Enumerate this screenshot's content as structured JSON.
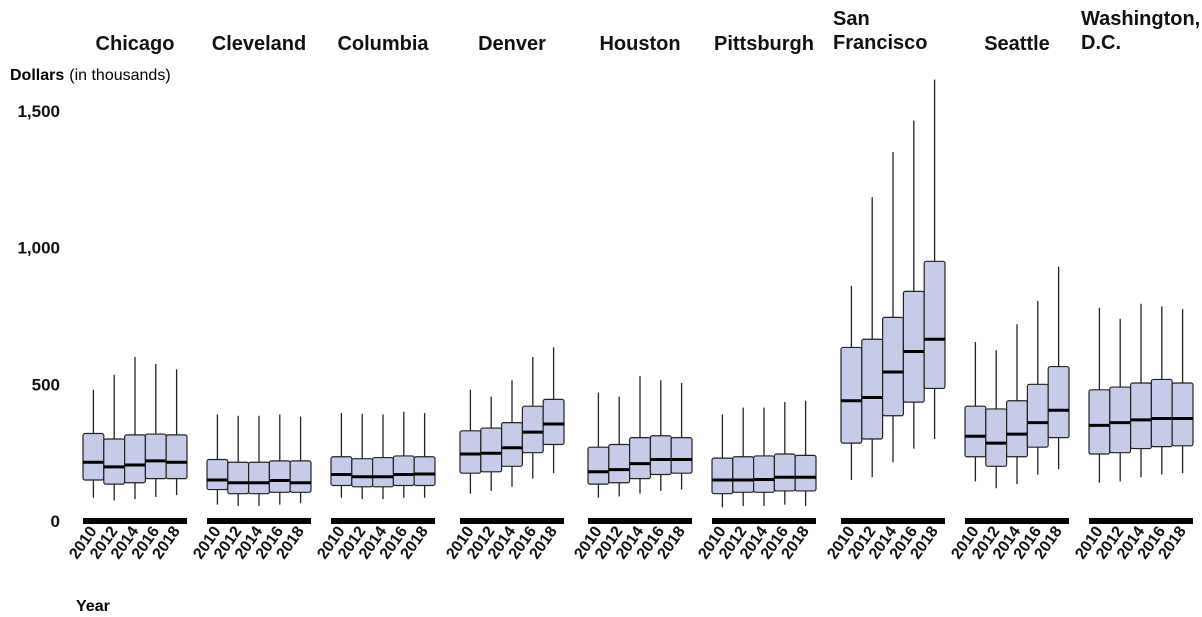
{
  "chart_data": {
    "type": "boxplot",
    "ylabel_bold": "Dollars",
    "ylabel_unit": "(in thousands)",
    "xlabel": "Year",
    "ylim": [
      0,
      1500
    ],
    "yticks": [
      {
        "value": 0,
        "label": "0"
      },
      {
        "value": 500,
        "label": "500"
      },
      {
        "value": 1000,
        "label": "1,000"
      },
      {
        "value": 1500,
        "label": "1,500"
      }
    ],
    "years": [
      "2010",
      "2012",
      "2014",
      "2016",
      "2018"
    ],
    "box_color": "#c5cbe8",
    "panels": [
      {
        "city": [
          "Chicago"
        ],
        "boxes": [
          {
            "year": "2010",
            "min": 85,
            "q1": 150,
            "median": 215,
            "q3": 320,
            "max": 480
          },
          {
            "year": "2012",
            "min": 75,
            "q1": 135,
            "median": 198,
            "q3": 300,
            "max": 535
          },
          {
            "year": "2014",
            "min": 80,
            "q1": 140,
            "median": 205,
            "q3": 315,
            "max": 600
          },
          {
            "year": "2016",
            "min": 88,
            "q1": 155,
            "median": 220,
            "q3": 318,
            "max": 575
          },
          {
            "year": "2018",
            "min": 95,
            "q1": 155,
            "median": 215,
            "q3": 315,
            "max": 555
          }
        ]
      },
      {
        "city": [
          "Cleveland"
        ],
        "boxes": [
          {
            "year": "2010",
            "min": 60,
            "q1": 115,
            "median": 150,
            "q3": 225,
            "max": 390
          },
          {
            "year": "2012",
            "min": 55,
            "q1": 100,
            "median": 140,
            "q3": 215,
            "max": 385
          },
          {
            "year": "2014",
            "min": 55,
            "q1": 100,
            "median": 140,
            "q3": 215,
            "max": 385
          },
          {
            "year": "2016",
            "min": 60,
            "q1": 105,
            "median": 148,
            "q3": 220,
            "max": 390
          },
          {
            "year": "2018",
            "min": 65,
            "q1": 105,
            "median": 140,
            "q3": 220,
            "max": 382
          }
        ]
      },
      {
        "city": [
          "Columbia"
        ],
        "boxes": [
          {
            "year": "2010",
            "min": 85,
            "q1": 130,
            "median": 170,
            "q3": 235,
            "max": 395
          },
          {
            "year": "2012",
            "min": 80,
            "q1": 125,
            "median": 162,
            "q3": 228,
            "max": 392
          },
          {
            "year": "2014",
            "min": 80,
            "q1": 125,
            "median": 162,
            "q3": 232,
            "max": 390
          },
          {
            "year": "2016",
            "min": 85,
            "q1": 130,
            "median": 170,
            "q3": 238,
            "max": 400
          },
          {
            "year": "2018",
            "min": 85,
            "q1": 130,
            "median": 172,
            "q3": 235,
            "max": 395
          }
        ]
      },
      {
        "city": [
          "Denver"
        ],
        "boxes": [
          {
            "year": "2010",
            "min": 100,
            "q1": 175,
            "median": 245,
            "q3": 330,
            "max": 480
          },
          {
            "year": "2012",
            "min": 110,
            "q1": 180,
            "median": 248,
            "q3": 340,
            "max": 455
          },
          {
            "year": "2014",
            "min": 125,
            "q1": 200,
            "median": 268,
            "q3": 360,
            "max": 515
          },
          {
            "year": "2016",
            "min": 155,
            "q1": 250,
            "median": 325,
            "q3": 420,
            "max": 600
          },
          {
            "year": "2018",
            "min": 175,
            "q1": 280,
            "median": 355,
            "q3": 445,
            "max": 635
          }
        ]
      },
      {
        "city": [
          "Houston"
        ],
        "boxes": [
          {
            "year": "2010",
            "min": 85,
            "q1": 135,
            "median": 180,
            "q3": 270,
            "max": 470
          },
          {
            "year": "2012",
            "min": 90,
            "q1": 140,
            "median": 188,
            "q3": 280,
            "max": 455
          },
          {
            "year": "2014",
            "min": 100,
            "q1": 155,
            "median": 210,
            "q3": 305,
            "max": 530
          },
          {
            "year": "2016",
            "min": 110,
            "q1": 170,
            "median": 225,
            "q3": 312,
            "max": 515
          },
          {
            "year": "2018",
            "min": 115,
            "q1": 175,
            "median": 225,
            "q3": 305,
            "max": 505
          }
        ]
      },
      {
        "city": [
          "Pittsburgh"
        ],
        "boxes": [
          {
            "year": "2010",
            "min": 50,
            "q1": 100,
            "median": 150,
            "q3": 230,
            "max": 390
          },
          {
            "year": "2012",
            "min": 55,
            "q1": 105,
            "median": 150,
            "q3": 235,
            "max": 415
          },
          {
            "year": "2014",
            "min": 55,
            "q1": 105,
            "median": 152,
            "q3": 238,
            "max": 415
          },
          {
            "year": "2016",
            "min": 60,
            "q1": 110,
            "median": 160,
            "q3": 245,
            "max": 435
          },
          {
            "year": "2018",
            "min": 55,
            "q1": 110,
            "median": 160,
            "q3": 240,
            "max": 440
          }
        ]
      },
      {
        "city": [
          "San",
          "Francisco"
        ],
        "boxes": [
          {
            "year": "2010",
            "min": 150,
            "q1": 285,
            "median": 440,
            "q3": 635,
            "max": 860
          },
          {
            "year": "2012",
            "min": 160,
            "q1": 300,
            "median": 452,
            "q3": 665,
            "max": 1185
          },
          {
            "year": "2014",
            "min": 215,
            "q1": 385,
            "median": 545,
            "q3": 745,
            "max": 1350
          },
          {
            "year": "2016",
            "min": 265,
            "q1": 435,
            "median": 620,
            "q3": 840,
            "max": 1465
          },
          {
            "year": "2018",
            "min": 300,
            "q1": 485,
            "median": 665,
            "q3": 950,
            "max": 1615
          }
        ]
      },
      {
        "city": [
          "Seattle"
        ],
        "boxes": [
          {
            "year": "2010",
            "min": 145,
            "q1": 235,
            "median": 310,
            "q3": 420,
            "max": 655
          },
          {
            "year": "2012",
            "min": 120,
            "q1": 200,
            "median": 285,
            "q3": 410,
            "max": 625
          },
          {
            "year": "2014",
            "min": 135,
            "q1": 235,
            "median": 318,
            "q3": 440,
            "max": 720
          },
          {
            "year": "2016",
            "min": 170,
            "q1": 270,
            "median": 360,
            "q3": 500,
            "max": 805
          },
          {
            "year": "2018",
            "min": 190,
            "q1": 305,
            "median": 405,
            "q3": 565,
            "max": 930
          }
        ]
      },
      {
        "city": [
          "Washington,",
          "D.C."
        ],
        "boxes": [
          {
            "year": "2010",
            "min": 140,
            "q1": 245,
            "median": 350,
            "q3": 480,
            "max": 780
          },
          {
            "year": "2012",
            "min": 145,
            "q1": 250,
            "median": 360,
            "q3": 490,
            "max": 740
          },
          {
            "year": "2014",
            "min": 160,
            "q1": 265,
            "median": 370,
            "q3": 505,
            "max": 795
          },
          {
            "year": "2016",
            "min": 170,
            "q1": 272,
            "median": 375,
            "q3": 518,
            "max": 785
          },
          {
            "year": "2018",
            "min": 175,
            "q1": 275,
            "median": 375,
            "q3": 505,
            "max": 775
          }
        ]
      }
    ]
  }
}
